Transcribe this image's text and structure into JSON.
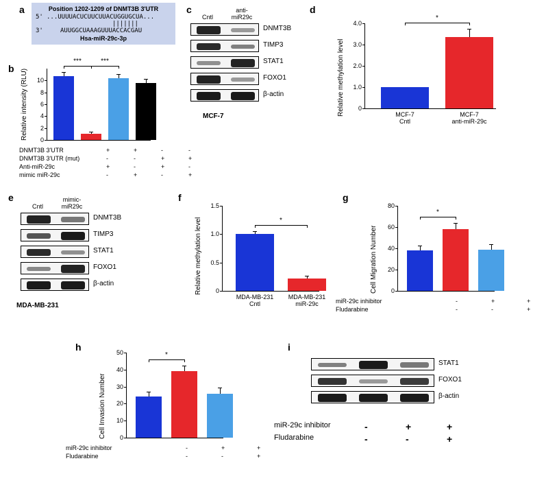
{
  "colors": {
    "blue": "#1935d6",
    "red": "#e6272b",
    "lightblue": "#4aa0e6",
    "black": "#000000",
    "bg": "#ffffff"
  },
  "a": {
    "title": "Position 1202-1209 of DNMT3B 3'UTR",
    "line1_prefix": "5'",
    "line1": "...UUUUACUCUUCUUACUGGUGCUA...",
    "match": "|||||||",
    "line2_prefix": "3'",
    "line2": "AUUGGCUAAAGUUUACCACGAU",
    "footer": "Hsa-miR-29c-3p"
  },
  "b": {
    "ytitle": "Relative intensity (RLU)",
    "ymax": 12,
    "yticks": [
      0,
      2,
      4,
      6,
      8,
      10
    ],
    "bars": [
      {
        "v": 10.7,
        "err": 0.6,
        "color": "#1935d6"
      },
      {
        "v": 1.0,
        "err": 0.3,
        "color": "#e6272b"
      },
      {
        "v": 10.4,
        "err": 0.6,
        "color": "#4aa0e6"
      },
      {
        "v": 9.6,
        "err": 0.5,
        "color": "#000000"
      }
    ],
    "sig": "***",
    "rows": [
      {
        "label": "DNMT3B 3'UTR",
        "marks": [
          "+",
          "+",
          "-",
          "-"
        ]
      },
      {
        "label": "DNMT3B 3'UTR (mut)",
        "marks": [
          "-",
          "-",
          "+",
          "+"
        ]
      },
      {
        "label": "Anti-miR-29c",
        "marks": [
          "+",
          "-",
          "+",
          "-"
        ]
      },
      {
        "label": "mimic miR-29c",
        "marks": [
          "-",
          "+",
          "-",
          "+"
        ]
      }
    ]
  },
  "c": {
    "panel_title": "MCF-7",
    "heads": [
      "Cntl",
      "anti-\nmiR29c"
    ],
    "rows": [
      {
        "label": "DNMT3B",
        "intens": [
          0.9,
          0.2
        ]
      },
      {
        "label": "TIMP3",
        "intens": [
          0.85,
          0.35
        ]
      },
      {
        "label": "STAT1",
        "intens": [
          0.25,
          0.9
        ]
      },
      {
        "label": "FOXO1",
        "intens": [
          0.9,
          0.2
        ]
      },
      {
        "label": "β-actin",
        "intens": [
          0.95,
          0.95
        ]
      }
    ]
  },
  "d": {
    "ytitle": "Relative methylation level",
    "ymax": 4.0,
    "yticks": [
      0,
      "1.0",
      "2.0",
      "3.0",
      "4.0"
    ],
    "bars": [
      {
        "v": 1.0,
        "err": 0.0,
        "color": "#1935d6",
        "lab": "MCF-7\nCntl"
      },
      {
        "v": 3.35,
        "err": 0.35,
        "color": "#e6272b",
        "lab": "MCF-7\nanti-miR-29c"
      }
    ],
    "sig": "*"
  },
  "e": {
    "panel_title": "MDA-MB-231",
    "heads": [
      "Cntl",
      "mimic-\nmiR29c"
    ],
    "rows": [
      {
        "label": "DNMT3B",
        "intens": [
          0.9,
          0.4
        ]
      },
      {
        "label": "TIMP3",
        "intens": [
          0.6,
          0.95
        ]
      },
      {
        "label": "STAT1",
        "intens": [
          0.85,
          0.25
        ]
      },
      {
        "label": "FOXO1",
        "intens": [
          0.3,
          0.9
        ]
      },
      {
        "label": "β-actin",
        "intens": [
          0.95,
          0.95
        ]
      }
    ]
  },
  "f": {
    "ytitle": "Relative methylation level",
    "ymax": 1.5,
    "yticks": [
      "0",
      "0.5",
      "1.0",
      "1.5"
    ],
    "bars": [
      {
        "v": 1.0,
        "err": 0.04,
        "color": "#1935d6",
        "lab": "MDA-MB-231\nCntl"
      },
      {
        "v": 0.22,
        "err": 0.04,
        "color": "#e6272b",
        "lab": "MDA-MB-231\nmiR-29c"
      }
    ],
    "sig": "*"
  },
  "g": {
    "ytitle": "Cell Migration Number",
    "ymax": 80,
    "yticks": [
      0,
      20,
      40,
      60,
      80
    ],
    "bars": [
      {
        "v": 38,
        "err": 4,
        "color": "#1935d6"
      },
      {
        "v": 58,
        "err": 5,
        "color": "#e6272b"
      },
      {
        "v": 39,
        "err": 4,
        "color": "#4aa0e6"
      }
    ],
    "sig": "*",
    "rows": [
      {
        "label": "miR-29c inhibitor",
        "marks": [
          "-",
          "+",
          "+"
        ]
      },
      {
        "label": "Fludarabine",
        "marks": [
          "-",
          "-",
          "+"
        ]
      }
    ]
  },
  "h": {
    "ytitle": "Cell Invasion Number",
    "ymax": 50,
    "yticks": [
      0,
      10,
      20,
      30,
      40,
      50
    ],
    "bars": [
      {
        "v": 24,
        "err": 2.5,
        "color": "#1935d6"
      },
      {
        "v": 39,
        "err": 3,
        "color": "#e6272b"
      },
      {
        "v": 26,
        "err": 3,
        "color": "#4aa0e6"
      }
    ],
    "sig": "*",
    "rows": [
      {
        "label": "miR-29c inhibitor",
        "marks": [
          "-",
          "+",
          "+"
        ]
      },
      {
        "label": "Fludarabine",
        "marks": [
          "-",
          "-",
          "+"
        ]
      }
    ]
  },
  "i": {
    "rows": [
      {
        "label": "STAT1",
        "intens": [
          0.35,
          0.95,
          0.4
        ]
      },
      {
        "label": "FOXO1",
        "intens": [
          0.8,
          0.2,
          0.75
        ]
      },
      {
        "label": "β-actin",
        "intens": [
          0.95,
          0.95,
          0.95
        ]
      }
    ],
    "cond_rows": [
      {
        "label": "miR-29c inhibitor",
        "marks": [
          "-",
          "+",
          "+"
        ]
      },
      {
        "label": "Fludarabine",
        "marks": [
          "-",
          "-",
          "+"
        ]
      }
    ]
  },
  "labels": {
    "a": "a",
    "b": "b",
    "c": "c",
    "d": "d",
    "e": "e",
    "f": "f",
    "g": "g",
    "h": "h",
    "i": "i"
  }
}
